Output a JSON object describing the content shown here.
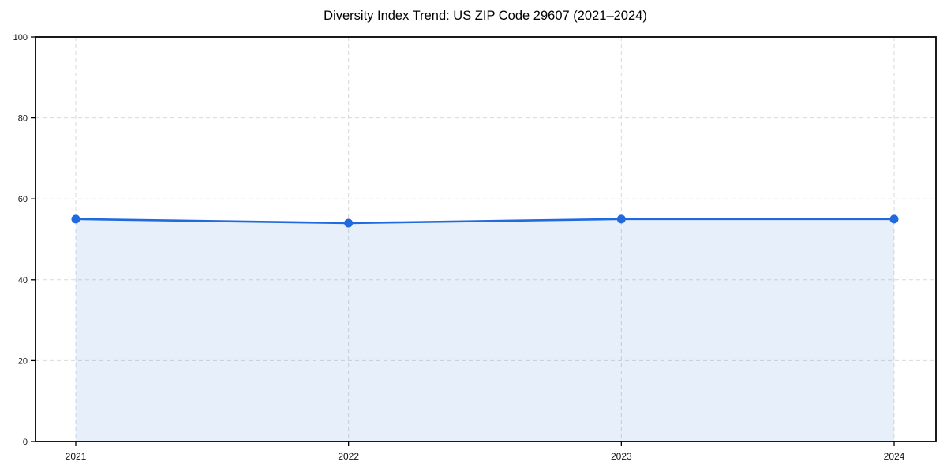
{
  "page": {
    "background": "#ffffff"
  },
  "chart_data": {
    "type": "area",
    "title": "Diversity Index Trend: US ZIP Code 29607 (2021–2024)",
    "categories": [
      "2021",
      "2022",
      "2023",
      "2024"
    ],
    "series": [
      {
        "name": "Diversity Index",
        "values": [
          55,
          54,
          55,
          55
        ]
      }
    ],
    "xlabel": "",
    "ylabel": "",
    "ylim": [
      0,
      100
    ],
    "yticks": [
      0,
      20,
      40,
      60,
      80,
      100
    ],
    "grid": true,
    "grid_style": "dashed",
    "legend_position": "none",
    "marker": "circle",
    "colors": {
      "line": "#2169de",
      "marker": "#2169de",
      "fill": "rgba(33,105,222,0.11)",
      "grid": "#d9d9d9",
      "frame": "#000000",
      "tick": "#000000",
      "tick_label": "#111111",
      "title": "#000000",
      "background": "#ffffff"
    }
  }
}
